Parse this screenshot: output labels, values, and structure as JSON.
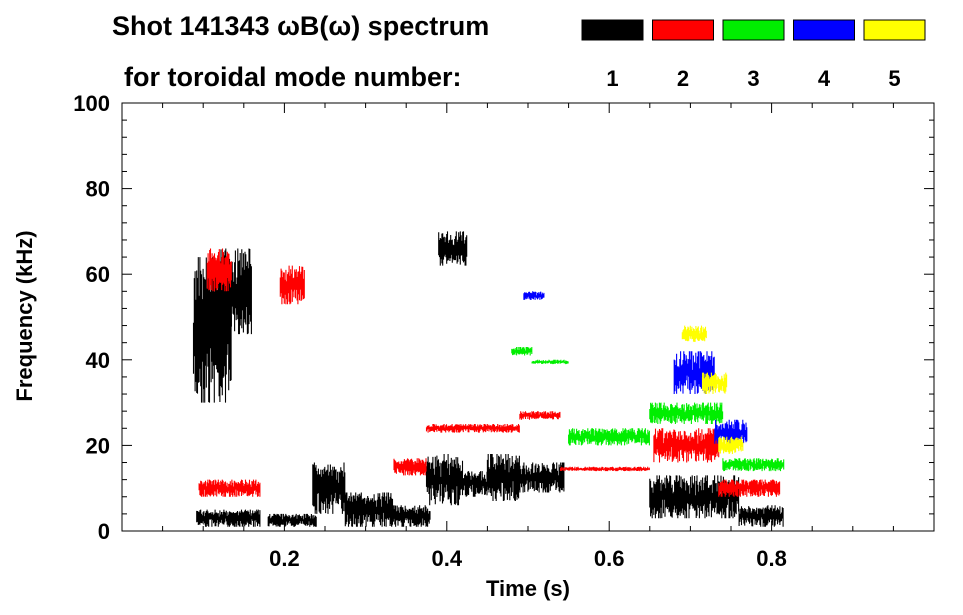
{
  "chart_data": {
    "type": "heatmap",
    "title_line1": "Shot 141343 ωB(ω) spectrum",
    "title_line2": "for toroidal mode number:",
    "xlabel": "Time (s)",
    "ylabel": "Frequency (kHz)",
    "xlim": [
      0.0,
      1.0
    ],
    "ylim": [
      0,
      100
    ],
    "x_ticks": [
      0.2,
      0.4,
      0.6,
      0.8
    ],
    "x_tick_labels": [
      "0.2",
      "0.4",
      "0.6",
      "0.8"
    ],
    "y_ticks": [
      0,
      20,
      40,
      60,
      80,
      100
    ],
    "y_tick_labels": [
      "0",
      "20",
      "40",
      "60",
      "80",
      "100"
    ],
    "legend": [
      {
        "label": "1",
        "color": "#000000"
      },
      {
        "label": "2",
        "color": "#ff0000"
      },
      {
        "label": "3",
        "color": "#00ee00"
      },
      {
        "label": "4",
        "color": "#0000ff"
      },
      {
        "label": "5",
        "color": "#ffff00"
      }
    ],
    "regions": [
      {
        "mode": 1,
        "t": [
          0.088,
          0.135
        ],
        "f": [
          30,
          64
        ]
      },
      {
        "mode": 1,
        "t": [
          0.12,
          0.16
        ],
        "f": [
          46,
          66
        ]
      },
      {
        "mode": 1,
        "t": [
          0.092,
          0.17
        ],
        "f": [
          1,
          5
        ]
      },
      {
        "mode": 1,
        "t": [
          0.18,
          0.24
        ],
        "f": [
          1,
          4
        ]
      },
      {
        "mode": 1,
        "t": [
          0.235,
          0.275
        ],
        "f": [
          4,
          16
        ]
      },
      {
        "mode": 1,
        "t": [
          0.275,
          0.335
        ],
        "f": [
          1,
          9
        ]
      },
      {
        "mode": 1,
        "t": [
          0.33,
          0.38
        ],
        "f": [
          1,
          6
        ]
      },
      {
        "mode": 1,
        "t": [
          0.375,
          0.42
        ],
        "f": [
          6,
          18
        ]
      },
      {
        "mode": 1,
        "t": [
          0.42,
          0.45
        ],
        "f": [
          8,
          14
        ]
      },
      {
        "mode": 1,
        "t": [
          0.45,
          0.49
        ],
        "f": [
          7,
          18
        ]
      },
      {
        "mode": 1,
        "t": [
          0.49,
          0.545
        ],
        "f": [
          9,
          16
        ]
      },
      {
        "mode": 1,
        "t": [
          0.39,
          0.425
        ],
        "f": [
          62,
          70
        ]
      },
      {
        "mode": 1,
        "t": [
          0.65,
          0.76
        ],
        "f": [
          3,
          13
        ]
      },
      {
        "mode": 1,
        "t": [
          0.76,
          0.815
        ],
        "f": [
          1,
          6
        ]
      },
      {
        "mode": 2,
        "t": [
          0.195,
          0.225
        ],
        "f": [
          53,
          62
        ]
      },
      {
        "mode": 2,
        "t": [
          0.105,
          0.135
        ],
        "f": [
          56,
          66
        ]
      },
      {
        "mode": 2,
        "t": [
          0.095,
          0.17
        ],
        "f": [
          8,
          12
        ]
      },
      {
        "mode": 2,
        "t": [
          0.335,
          0.375
        ],
        "f": [
          13,
          17
        ]
      },
      {
        "mode": 2,
        "t": [
          0.375,
          0.49
        ],
        "f": [
          23,
          25
        ]
      },
      {
        "mode": 2,
        "t": [
          0.49,
          0.54
        ],
        "f": [
          26,
          28
        ]
      },
      {
        "mode": 2,
        "t": [
          0.54,
          0.65
        ],
        "f": [
          14,
          15
        ]
      },
      {
        "mode": 2,
        "t": [
          0.655,
          0.735
        ],
        "f": [
          16,
          24
        ]
      },
      {
        "mode": 2,
        "t": [
          0.735,
          0.81
        ],
        "f": [
          8,
          12
        ]
      },
      {
        "mode": 3,
        "t": [
          0.48,
          0.505
        ],
        "f": [
          41,
          43
        ]
      },
      {
        "mode": 3,
        "t": [
          0.505,
          0.55
        ],
        "f": [
          39,
          40
        ]
      },
      {
        "mode": 3,
        "t": [
          0.55,
          0.65
        ],
        "f": [
          20,
          24
        ]
      },
      {
        "mode": 3,
        "t": [
          0.65,
          0.74
        ],
        "f": [
          25,
          30
        ]
      },
      {
        "mode": 3,
        "t": [
          0.74,
          0.815
        ],
        "f": [
          14,
          17
        ]
      },
      {
        "mode": 4,
        "t": [
          0.495,
          0.52
        ],
        "f": [
          54,
          56
        ]
      },
      {
        "mode": 4,
        "t": [
          0.68,
          0.73
        ],
        "f": [
          32,
          42
        ]
      },
      {
        "mode": 4,
        "t": [
          0.73,
          0.77
        ],
        "f": [
          20,
          26
        ]
      },
      {
        "mode": 5,
        "t": [
          0.69,
          0.72
        ],
        "f": [
          44,
          48
        ]
      },
      {
        "mode": 5,
        "t": [
          0.715,
          0.745
        ],
        "f": [
          32,
          37
        ]
      },
      {
        "mode": 5,
        "t": [
          0.735,
          0.765
        ],
        "f": [
          18,
          22
        ]
      }
    ]
  }
}
